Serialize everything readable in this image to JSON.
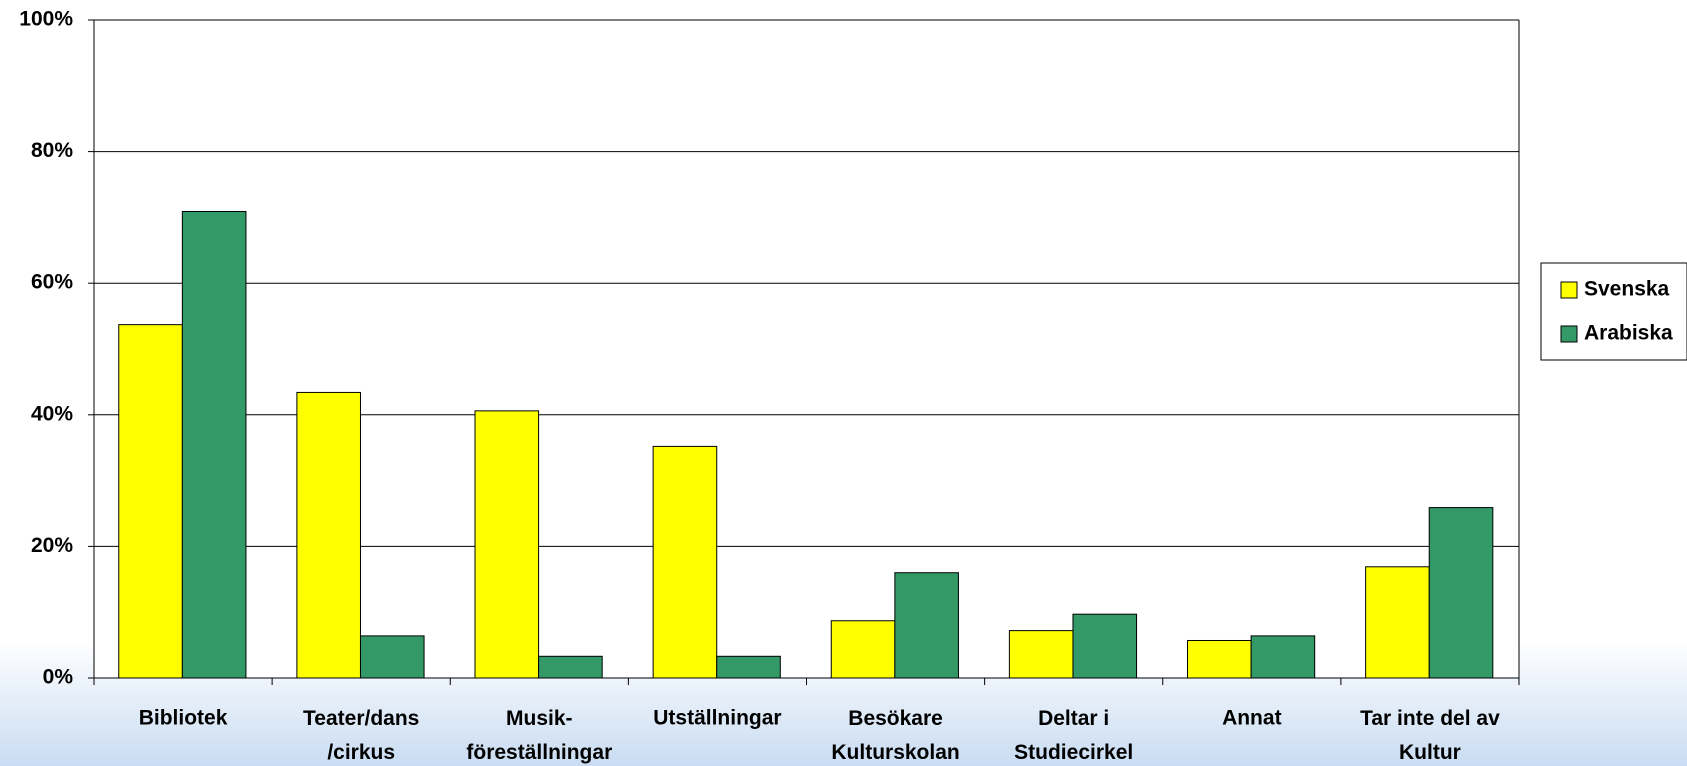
{
  "chart_data": {
    "type": "bar",
    "categories": [
      "Bibliotek",
      "Teater/dans\n/cirkus",
      "Musik-\nföreställningar",
      "Utställningar",
      "Besökare\nKulturskolan",
      "Deltar i\nStudiecirkel",
      "Annat",
      "Tar inte del av\nKultur"
    ],
    "series": [
      {
        "name": "Svenska",
        "color": "#ffff00",
        "values": [
          53.7,
          43.4,
          40.6,
          35.2,
          8.7,
          7.2,
          5.7,
          16.9
        ]
      },
      {
        "name": "Arabiska",
        "color": "#339966",
        "values": [
          70.9,
          6.4,
          3.3,
          3.3,
          16.0,
          9.7,
          6.4,
          25.9
        ]
      }
    ],
    "ylim": [
      0,
      100
    ],
    "yticks": [
      {
        "value": 0,
        "label": "0%"
      },
      {
        "value": 20,
        "label": "20%"
      },
      {
        "value": 40,
        "label": "40%"
      },
      {
        "value": 60,
        "label": "60%"
      },
      {
        "value": 80,
        "label": "80%"
      },
      {
        "value": 100,
        "label": "100%"
      }
    ],
    "grid": true,
    "legend": "right"
  }
}
